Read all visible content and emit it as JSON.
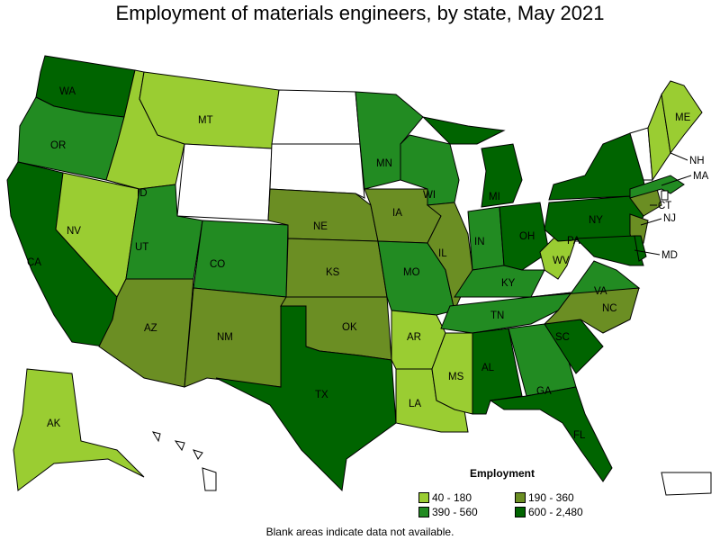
{
  "title": "Employment of materials engineers, by state, May 2021",
  "legend": {
    "title": "Employment",
    "bins": [
      {
        "label": "40 - 180",
        "color": "#9acd32"
      },
      {
        "label": "190 - 360",
        "color": "#6b8e23"
      },
      {
        "label": "390 - 560",
        "color": "#228b22"
      },
      {
        "label": "600 - 2,480",
        "color": "#006400"
      }
    ]
  },
  "blank_color": "#ffffff",
  "note": "Blank areas indicate data not available.",
  "states": {
    "WA": 3,
    "OR": 2,
    "CA": 3,
    "NV": 0,
    "ID": 0,
    "MT": 0,
    "WY": null,
    "UT": 2,
    "CO": 2,
    "AZ": 1,
    "NM": 1,
    "ND": null,
    "SD": null,
    "NE": 1,
    "KS": 1,
    "OK": 1,
    "TX": 3,
    "MN": 2,
    "IA": 1,
    "MO": 2,
    "AR": 0,
    "LA": 0,
    "WI": 2,
    "IL": 1,
    "MI": 3,
    "IN": 2,
    "OH": 3,
    "KY": 2,
    "TN": 2,
    "MS": 0,
    "AL": 3,
    "GA": 2,
    "FL": 3,
    "SC": 3,
    "NC": 1,
    "VA": 2,
    "WV": 0,
    "PA": 3,
    "NY": 3,
    "NJ": 1,
    "MD": 3,
    "DE": 3,
    "CT": 1,
    "MA": 2,
    "VT": null,
    "NH": 0,
    "ME": 0,
    "RI": null,
    "AK": 0,
    "HI": null,
    "PR": null
  }
}
